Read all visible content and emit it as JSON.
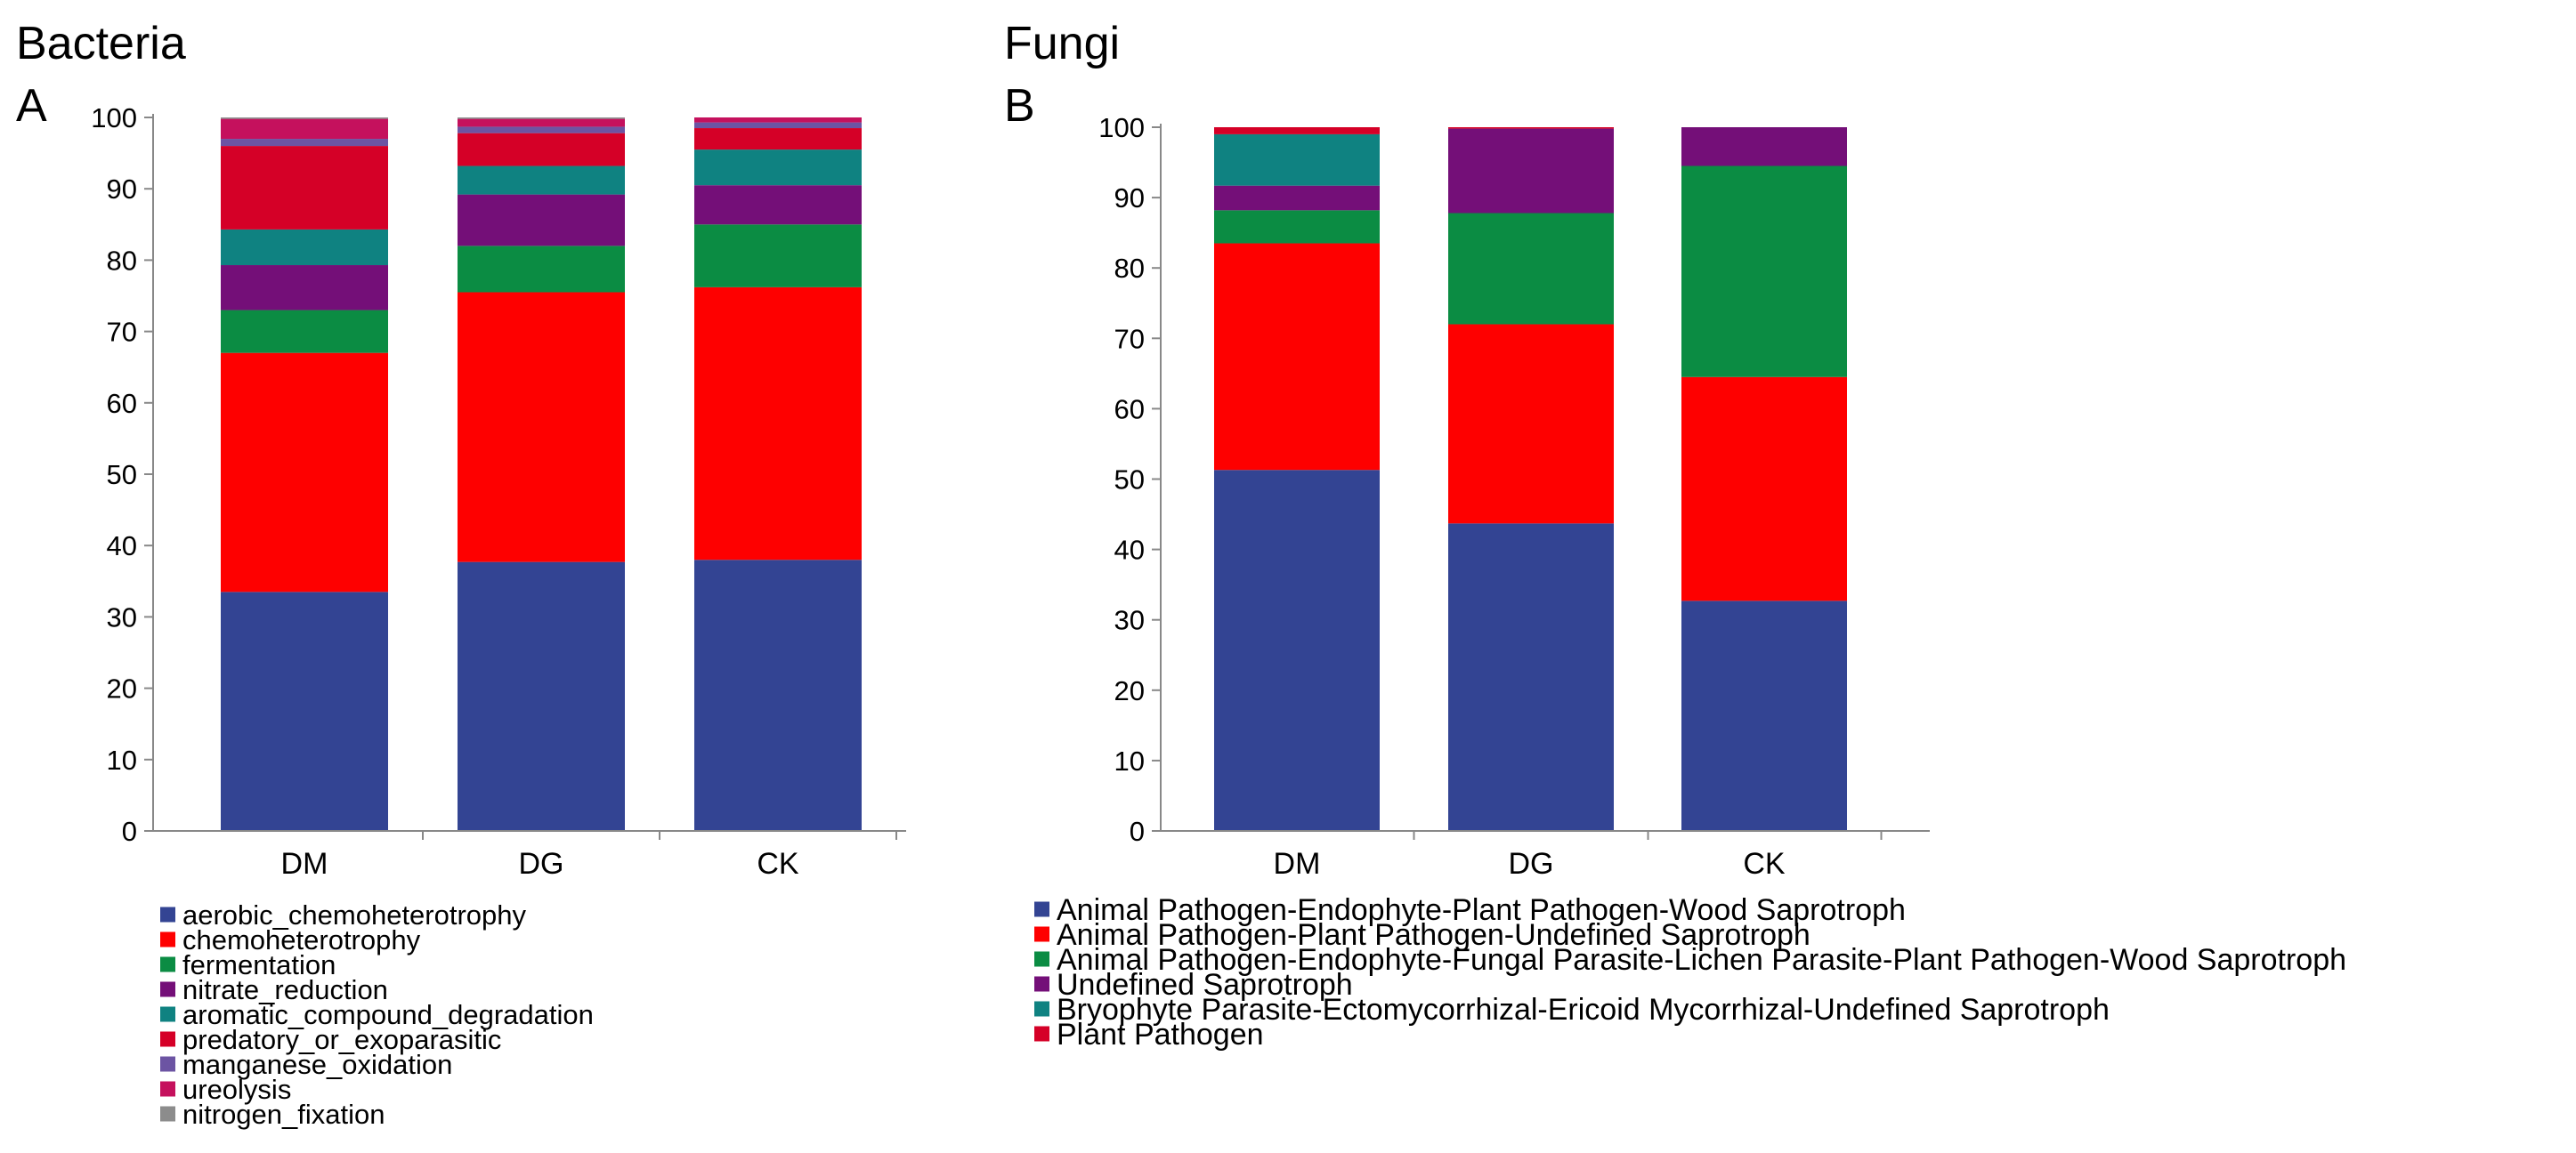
{
  "panels": [
    {
      "section_title": "Bacteria",
      "panel_label": "A",
      "chart_data": {
        "type": "bar",
        "stacked": true,
        "categories": [
          "DM",
          "DG",
          "CK"
        ],
        "ylim": [
          0,
          100
        ],
        "yticks": [
          0,
          10,
          20,
          30,
          40,
          50,
          60,
          70,
          80,
          90,
          100
        ],
        "grid": false,
        "legend_position": "bottom",
        "series": [
          {
            "name": "aerobic_chemoheterotrophy",
            "color": "#334493",
            "values": [
              33.5,
              37.7,
              38.0
            ]
          },
          {
            "name": "chemoheterotrophy",
            "color": "#fe0000",
            "values": [
              33.5,
              37.8,
              38.2
            ]
          },
          {
            "name": "fermentation",
            "color": "#0b8c43",
            "values": [
              6.0,
              6.5,
              8.8
            ]
          },
          {
            "name": "nitrate_reduction",
            "color": "#740f78",
            "values": [
              6.3,
              7.2,
              5.5
            ]
          },
          {
            "name": "aromatic_compound_degradation",
            "color": "#0f8281",
            "values": [
              5.0,
              4.0,
              5.0
            ]
          },
          {
            "name": "predatory_or_exoparasitic",
            "color": "#d50027",
            "values": [
              11.7,
              4.6,
              3.0
            ]
          },
          {
            "name": "manganese_oxidation",
            "color": "#6c54a3",
            "values": [
              1.0,
              0.9,
              0.8
            ]
          },
          {
            "name": "ureolysis",
            "color": "#c5115d",
            "values": [
              2.8,
              1.1,
              0.7
            ]
          },
          {
            "name": "nitrogen_fixation",
            "color": "#8c8c8c",
            "values": [
              0.2,
              0.2,
              0.0
            ]
          }
        ]
      }
    },
    {
      "section_title": "Fungi",
      "panel_label": "B",
      "chart_data": {
        "type": "bar",
        "stacked": true,
        "categories": [
          "DM",
          "DG",
          "CK"
        ],
        "ylim": [
          0,
          100
        ],
        "yticks": [
          0,
          10,
          20,
          30,
          40,
          50,
          60,
          70,
          80,
          90,
          100
        ],
        "grid": false,
        "legend_position": "bottom",
        "series": [
          {
            "name": "Animal Pathogen-Endophyte-Plant Pathogen-Wood Saprotroph",
            "color": "#334493",
            "values": [
              51.3,
              43.7,
              32.7
            ]
          },
          {
            "name": "Animal Pathogen-Plant Pathogen-Undefined Saprotroph",
            "color": "#fe0000",
            "values": [
              32.2,
              28.3,
              31.8
            ]
          },
          {
            "name": "Animal Pathogen-Endophyte-Fungal Parasite-Lichen Parasite-Plant Pathogen-Wood Saprotroph",
            "color": "#0b8c43",
            "values": [
              4.7,
              15.8,
              30.0
            ]
          },
          {
            "name": "Undefined Saprotroph",
            "color": "#740f78",
            "values": [
              3.5,
              12.0,
              5.5
            ]
          },
          {
            "name": "Bryophyte Parasite-Ectomycorrhizal-Ericoid Mycorrhizal-Undefined Saprotroph",
            "color": "#0f8281",
            "values": [
              7.3,
              0.0,
              0.0
            ]
          },
          {
            "name": "Plant Pathogen",
            "color": "#d50027",
            "values": [
              1.0,
              0.2,
              0.0
            ]
          }
        ]
      }
    }
  ]
}
